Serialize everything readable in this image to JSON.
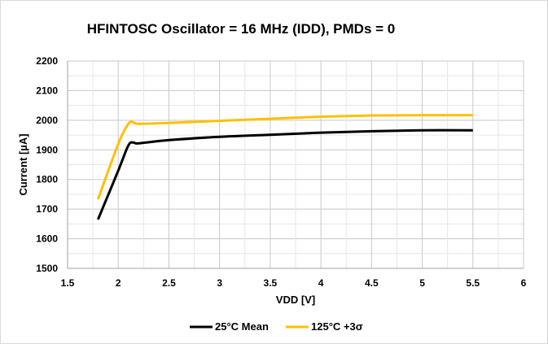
{
  "chart_data": {
    "type": "line",
    "title": "HFINTOSC Oscillator = 16 MHz (IDD), PMDs = 0",
    "xlabel": "VDD [V]",
    "ylabel": "Current [µA]",
    "xlim": [
      1.5,
      6
    ],
    "ylim": [
      1500,
      2200
    ],
    "xticks": [
      "1.5",
      "2",
      "2.5",
      "3",
      "3.5",
      "4",
      "4.5",
      "5",
      "5.5",
      "6"
    ],
    "yticks": [
      "1500",
      "1600",
      "1700",
      "1800",
      "1900",
      "2000",
      "2100",
      "2200"
    ],
    "grid": true,
    "legend": "bottom",
    "x": [
      1.8,
      2.0,
      2.1,
      2.15,
      2.2,
      2.5,
      3.0,
      3.5,
      4.0,
      4.5,
      5.0,
      5.5
    ],
    "series": [
      {
        "name": "25°C Mean",
        "color": "#000000",
        "values": [
          1665,
          1830,
          1915,
          1925,
          1922,
          1933,
          1944,
          1951,
          1958,
          1963,
          1966,
          1966
        ]
      },
      {
        "name": "125°C +3σ",
        "color": "#FFC000",
        "values": [
          1733,
          1920,
          1988,
          1993,
          1988,
          1991,
          1998,
          2005,
          2012,
          2016,
          2017,
          2017
        ]
      }
    ]
  }
}
